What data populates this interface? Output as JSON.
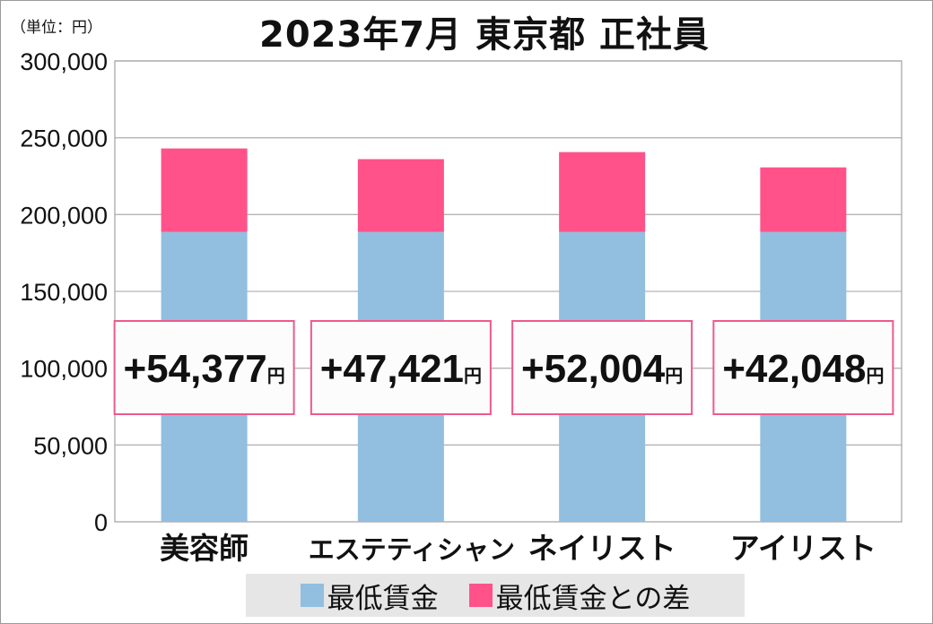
{
  "chart_data": {
    "type": "bar",
    "stacked": true,
    "title": "2023年7月 東京都 正社員",
    "unit_label": "（単位：円）",
    "categories": [
      "美容師",
      "エステティシャン",
      "ネイリスト",
      "アイリスト"
    ],
    "series": [
      {
        "name": "最低賃金",
        "color": "#92bedf",
        "values": [
          188672,
          188672,
          188672,
          188672
        ]
      },
      {
        "name": "最低賃金との差",
        "color": "#ff528a",
        "values": [
          54377,
          47421,
          52004,
          42048
        ]
      }
    ],
    "data_labels": [
      "+54,377",
      "+47,421",
      "+52,004",
      "+42,048"
    ],
    "data_label_suffix": "円",
    "ylim": [
      0,
      300000
    ],
    "yticks": [
      0,
      50000,
      100000,
      150000,
      200000,
      250000,
      300000
    ],
    "ytick_labels": [
      "0",
      "50,000",
      "100,000",
      "150,000",
      "200,000",
      "250,000",
      "300,000"
    ],
    "grid": true,
    "legend_position": "bottom"
  }
}
